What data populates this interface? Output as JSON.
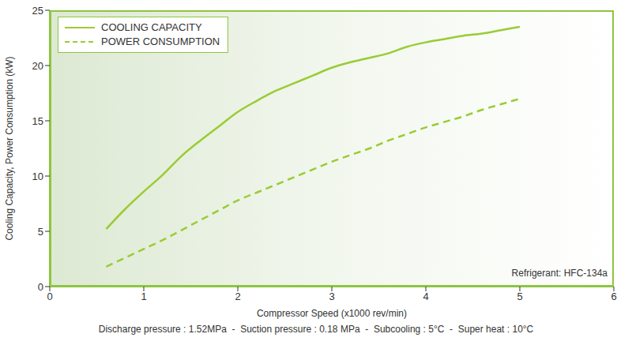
{
  "chart_data": {
    "type": "line",
    "xlabel": "Compressor Speed (x1000 rev/min)",
    "ylabel": "Cooling Capacity, Power Consumption (kW)",
    "x": [
      0.6,
      0.8,
      1.0,
      1.2,
      1.4,
      1.6,
      1.8,
      2.0,
      2.2,
      2.4,
      2.6,
      2.8,
      3.0,
      3.2,
      3.4,
      3.6,
      3.8,
      4.0,
      4.2,
      4.4,
      4.6,
      4.8,
      5.0
    ],
    "series": [
      {
        "name": "COOLING CAPACITY",
        "color": "#99cc33",
        "line_style": "solid",
        "values": [
          5.2,
          7.0,
          8.6,
          10.1,
          11.8,
          13.2,
          14.5,
          15.8,
          16.8,
          17.7,
          18.4,
          19.1,
          19.8,
          20.3,
          20.7,
          21.1,
          21.7,
          22.1,
          22.4,
          22.7,
          22.9,
          23.2,
          23.5
        ]
      },
      {
        "name": "POWER CONSUMPTION",
        "color": "#99cc33",
        "line_style": "dashed",
        "values": [
          1.8,
          2.6,
          3.4,
          4.2,
          5.1,
          6.0,
          6.9,
          7.8,
          8.5,
          9.2,
          9.9,
          10.6,
          11.3,
          11.9,
          12.5,
          13.2,
          13.8,
          14.4,
          14.9,
          15.4,
          16.0,
          16.5,
          17.0
        ]
      }
    ],
    "xlim": [
      0,
      6
    ],
    "ylim": [
      0,
      25
    ],
    "xticks": [
      0,
      1,
      2,
      3,
      4,
      5,
      6
    ],
    "yticks": [
      0,
      5,
      10,
      15,
      20,
      25
    ],
    "grid": false,
    "legend": "upper left",
    "annotations": [
      "Refrigerant: HFC-134a"
    ],
    "footnote": "Discharge pressure : 1.52MPa  -  Suction pressure : 0.18 MPa  -  Subcooling : 5°C  -  Super heat : 10°C"
  }
}
